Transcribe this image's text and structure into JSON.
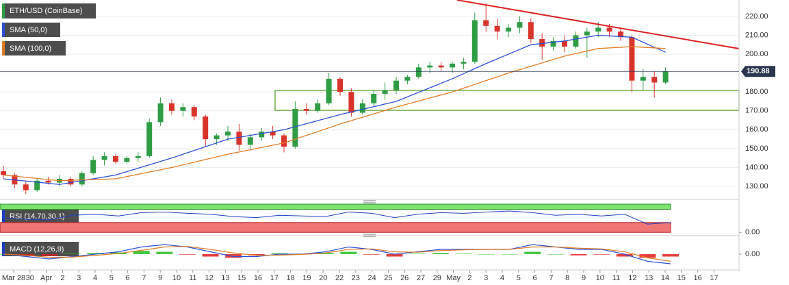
{
  "chart_data": [
    {
      "type": "candlestick",
      "title": "ETH/USD (CoinBase)",
      "ylim": [
        124.2,
        228.7
      ],
      "yticks": [
        {
          "value": 130,
          "label": "130.00"
        },
        {
          "value": 140,
          "label": "140.00"
        },
        {
          "value": 150,
          "label": "150.00"
        },
        {
          "value": 160,
          "label": "160.00"
        },
        {
          "value": 170,
          "label": "170.00"
        },
        {
          "value": 180,
          "label": "180.00"
        },
        {
          "value": 190,
          "label": "190.00"
        },
        {
          "value": 200,
          "label": "200.00"
        },
        {
          "value": 210,
          "label": "210.00"
        },
        {
          "value": 220,
          "label": "220.00"
        }
      ],
      "grid": true,
      "up_color": "#2e9d44",
      "down_color": "#d9342b",
      "open": [
        138,
        136,
        131,
        128,
        133,
        132,
        134,
        131,
        137,
        144,
        146,
        143,
        145,
        146,
        164,
        174,
        170,
        172,
        167,
        155,
        157,
        159,
        152,
        156,
        159,
        157,
        151,
        171,
        170,
        174,
        187,
        180,
        169,
        174,
        179,
        181,
        186,
        188,
        193,
        194,
        193,
        195,
        196,
        218,
        215,
        212,
        214,
        217,
        208,
        204,
        207,
        204,
        210,
        212,
        214,
        212,
        209,
        186,
        188,
        185
      ],
      "high": [
        141,
        137,
        133,
        134,
        135,
        136,
        135,
        138,
        146,
        148,
        147,
        146,
        148,
        166,
        177,
        176,
        174,
        173,
        168,
        158,
        162,
        163,
        158,
        161,
        162,
        158,
        175,
        174,
        176,
        190,
        188,
        182,
        176,
        181,
        185,
        188,
        189,
        195,
        196,
        196,
        196,
        198,
        222,
        227,
        219,
        216,
        220,
        219,
        211,
        209,
        210,
        212,
        214,
        217,
        216,
        214,
        210,
        192,
        191,
        193
      ],
      "low": [
        134,
        129,
        126,
        127,
        131,
        130,
        130,
        130,
        136,
        141,
        142,
        142,
        143,
        145,
        162,
        168,
        167,
        165,
        151,
        152,
        154,
        149,
        150,
        154,
        155,
        148,
        150,
        168,
        169,
        173,
        178,
        167,
        168,
        172,
        176,
        179,
        184,
        187,
        190,
        191,
        190,
        192,
        195,
        212,
        208,
        209,
        211,
        206,
        197,
        202,
        201,
        203,
        198,
        209,
        209,
        207,
        180,
        181,
        177,
        184
      ],
      "close": [
        136,
        131,
        128,
        133,
        132,
        134,
        131,
        137,
        144,
        146,
        143,
        145,
        146,
        164,
        174,
        170,
        172,
        167,
        155,
        157,
        159,
        152,
        156,
        159,
        157,
        151,
        171,
        170,
        174,
        187,
        180,
        169,
        174,
        179,
        181,
        186,
        188,
        193,
        194,
        193,
        195,
        196,
        218,
        215,
        212,
        214,
        217,
        208,
        204,
        207,
        204,
        210,
        212,
        214,
        212,
        209,
        186,
        188,
        185,
        190.88
      ],
      "series": [
        {
          "name": "SMA (50,0)",
          "color": "#2b4fd6",
          "x": [
            0,
            5,
            10,
            15,
            20,
            25,
            30,
            35,
            40,
            43,
            47,
            50,
            53,
            56,
            59
          ],
          "values": [
            134,
            131,
            136,
            145,
            155,
            160,
            168,
            175,
            187,
            195,
            205,
            207,
            210,
            209,
            201
          ]
        },
        {
          "name": "SMA (100,0)",
          "color": "#e07b24",
          "x": [
            0,
            5,
            10,
            15,
            20,
            25,
            30,
            35,
            40,
            45,
            50,
            53,
            56,
            59
          ],
          "values": [
            136,
            133,
            134,
            140,
            147,
            153,
            163,
            172,
            180,
            190,
            199,
            203,
            204,
            203
          ]
        }
      ],
      "x_axis_labels": [
        "Mar 28",
        "30",
        "Apr",
        "2",
        "3",
        "4",
        "5",
        "6",
        "7",
        "9",
        "10",
        "11",
        "12",
        "13",
        "15",
        "16",
        "17",
        "18",
        "19",
        "20",
        "22",
        "23",
        "24",
        "25",
        "26",
        "27",
        "29",
        "May",
        "2",
        "3",
        "4",
        "5",
        "6",
        "7",
        "8",
        "9",
        "10",
        "11",
        "12",
        "13",
        "14",
        "15",
        "16",
        "17"
      ]
    },
    {
      "type": "line",
      "title": "RSI (14,70,30,1)",
      "ylim": [
        -10,
        90
      ],
      "yticks": [
        {
          "value": 0,
          "label": "0.00"
        }
      ],
      "bands": [
        30,
        70
      ],
      "color": "#1f3fc4",
      "values": [
        45,
        40,
        38,
        52,
        55,
        50,
        60,
        62,
        58,
        55,
        48,
        45,
        52,
        50,
        48,
        62,
        58,
        45,
        55,
        60,
        58,
        62,
        65,
        60,
        52,
        55,
        50,
        55,
        25,
        30
      ]
    },
    {
      "type": "macd",
      "title": "MACD (12,26,9)",
      "ylim": [
        -6,
        6
      ],
      "yticks": [
        {
          "value": 0,
          "label": "0.00"
        }
      ],
      "macd": [
        0,
        -1,
        -2,
        -1,
        0,
        1,
        3,
        4,
        3,
        1,
        -1,
        -1,
        0,
        0,
        1,
        3,
        2,
        0,
        1,
        2,
        2,
        2,
        2,
        4,
        3,
        2,
        2,
        0,
        -3,
        -4
      ],
      "signal": [
        0,
        -0.5,
        -1.3,
        -1.2,
        -0.5,
        0.3,
        1.6,
        3,
        3.2,
        2,
        0.5,
        -0.5,
        -0.4,
        -0.1,
        0.5,
        2,
        2.2,
        1,
        0.8,
        1.5,
        1.8,
        2,
        2,
        3,
        3,
        2.5,
        2.2,
        1,
        -1.5,
        -3
      ],
      "histogram": [
        0,
        -0.5,
        -0.7,
        0.2,
        0.5,
        0.7,
        1.4,
        1,
        -0.2,
        -1,
        -1.5,
        -0.5,
        0.4,
        0.1,
        0.5,
        1,
        -0.2,
        -1,
        0.2,
        0.5,
        0.2,
        0,
        0,
        1,
        0,
        -0.5,
        -0.2,
        -1,
        -1.5,
        -1
      ]
    }
  ]
}
